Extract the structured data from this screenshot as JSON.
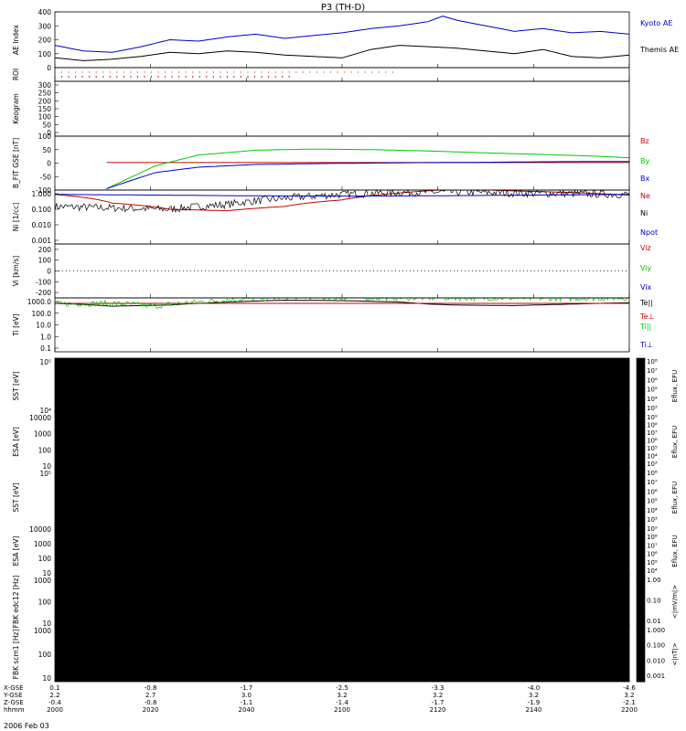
{
  "chart_data": {
    "type": "line",
    "title": "P3 (TH-D)",
    "date_label": "2006 Feb 03",
    "time_axis": {
      "ticks": [
        "2000",
        "2020",
        "2040",
        "2100",
        "2120",
        "2140",
        "2200"
      ],
      "rows": [
        {
          "label": "X-GSE",
          "values": [
            "0.1",
            "-0.8",
            "-1.7",
            "-2.5",
            "-3.3",
            "-4.0",
            "-4.6"
          ]
        },
        {
          "label": "Y-GSE",
          "values": [
            "2.2",
            "2.7",
            "3.0",
            "3.2",
            "3.2",
            "3.2",
            "3.2"
          ]
        },
        {
          "label": "Z-GSE",
          "values": [
            "-0.4",
            "-0.8",
            "-1.1",
            "-1.4",
            "-1.7",
            "-1.9",
            "-2.1"
          ]
        },
        {
          "label": "hhmm",
          "values": [
            "2000",
            "2020",
            "2040",
            "2100",
            "2120",
            "2140",
            "2200"
          ]
        }
      ]
    },
    "panels": [
      {
        "id": "ae",
        "type": "line",
        "ylabel": "AE Index",
        "yticks": [
          "400",
          "300",
          "200",
          "100",
          "0"
        ],
        "ylim": [
          0,
          400
        ],
        "series": [
          {
            "name": "Kyoto AE",
            "color": "#0000c8",
            "x": [
              0,
              10,
              20,
              30,
              40,
              50,
              60,
              70,
              80,
              90,
              100,
              110,
              120,
              130,
              135,
              140,
              150,
              160,
              170,
              180,
              190,
              200
            ],
            "y": [
              160,
              120,
              110,
              150,
              200,
              190,
              220,
              240,
              210,
              230,
              250,
              280,
              300,
              330,
              370,
              340,
              300,
              260,
              280,
              250,
              260,
              240
            ]
          },
          {
            "name": "Themis AE",
            "color": "#000000",
            "x": [
              0,
              10,
              20,
              30,
              40,
              50,
              60,
              70,
              80,
              90,
              100,
              110,
              120,
              130,
              140,
              150,
              160,
              170,
              180,
              190,
              200
            ],
            "y": [
              70,
              50,
              60,
              80,
              110,
              100,
              120,
              110,
              90,
              80,
              70,
              130,
              160,
              150,
              140,
              120,
              100,
              130,
              80,
              70,
              90
            ]
          }
        ]
      },
      {
        "id": "roi",
        "type": "events",
        "ylabel": "ROI",
        "yticks": [],
        "series": [
          {
            "color": "#d2691e",
            "row": 0,
            "x_start": 0,
            "x_end": 118
          },
          {
            "color": "#800000",
            "row": 1,
            "x_start": 0,
            "x_end": 82
          }
        ]
      },
      {
        "id": "keogram",
        "type": "blank",
        "ylabel": "Keogram",
        "yticks": [
          "300",
          "250",
          "200",
          "150",
          "100",
          "50",
          "0"
        ]
      },
      {
        "id": "b",
        "type": "line",
        "ylabel": "B_FIT GSE [nT]",
        "yticks": [
          "100",
          "50",
          "0",
          "-50",
          "-100"
        ],
        "ylim": [
          -100,
          100
        ],
        "series": [
          {
            "name": "Bz",
            "color": "#c80000",
            "x": [
              18,
              200
            ],
            "y": [
              2,
              2
            ]
          },
          {
            "name": "By",
            "color": "#00c800",
            "x": [
              18,
              25,
              35,
              50,
              70,
              90,
              110,
              130,
              150,
              170,
              190,
              200
            ],
            "y": [
              -95,
              -60,
              -10,
              30,
              48,
              52,
              50,
              45,
              38,
              32,
              25,
              20
            ]
          },
          {
            "name": "Bx",
            "color": "#0000c8",
            "x": [
              18,
              25,
              35,
              50,
              70,
              90,
              110,
              130,
              150,
              170,
              190,
              200
            ],
            "y": [
              -95,
              -70,
              -35,
              -15,
              -5,
              -2,
              0,
              2,
              3,
              5,
              6,
              6
            ]
          }
        ]
      },
      {
        "id": "n",
        "type": "line",
        "ylabel": "Ni [1/cc]",
        "scale": "log",
        "yticks": [
          "1.000",
          "0.100",
          "0.010",
          "0.001"
        ],
        "series": [
          {
            "name": "Ne",
            "color": "#c80000",
            "x": [
              0,
              20,
              40,
              60,
              80,
              100,
              120,
              140,
              160,
              180,
              200
            ],
            "y": [
              0.9,
              0.25,
              0.1,
              0.08,
              0.15,
              0.4,
              1.1,
              2.0,
              1.5,
              1.2,
              0.8
            ]
          },
          {
            "name": "Ni",
            "color": "#000000",
            "noisy": true,
            "x": [
              0,
              20,
              40,
              60,
              80,
              100,
              120,
              140,
              160,
              180,
              200
            ],
            "y": [
              0.15,
              0.12,
              0.1,
              0.2,
              0.5,
              0.9,
              1.2,
              1.3,
              1.1,
              1.0,
              0.9
            ]
          },
          {
            "name": "Npot",
            "color": "#0000c8",
            "x": [
              0,
              20,
              40,
              60,
              80,
              100,
              120,
              140,
              160,
              180,
              200
            ],
            "y": [
              0.9,
              0.85,
              0.8,
              0.75,
              0.72,
              0.7,
              0.72,
              0.75,
              0.8,
              0.85,
              0.9
            ]
          }
        ]
      },
      {
        "id": "v",
        "type": "line",
        "ylabel": "Vi [km/s]",
        "yticks": [
          "200",
          "100",
          "0",
          "-100",
          "-200"
        ],
        "ylim": [
          -250,
          250
        ],
        "series": [
          {
            "name": "Viz",
            "color": "#c80000"
          },
          {
            "name": "Viy",
            "color": "#00c800"
          },
          {
            "name": "Vix",
            "color": "#0000c8"
          }
        ]
      },
      {
        "id": "t",
        "type": "line",
        "ylabel": "Ti [eV]",
        "scale": "log",
        "yticks": [
          "1000.0",
          "100.0",
          "10.0",
          "1.0",
          "0.1"
        ],
        "series": [
          {
            "name": "Te||",
            "color": "#000000",
            "x": [
              0,
              20,
              40,
              60,
              80,
              100,
              120,
              130,
              140,
              160,
              180,
              200
            ],
            "y": [
              700,
              400,
              500,
              900,
              1300,
              1200,
              900,
              600,
              500,
              450,
              600,
              800
            ]
          },
          {
            "name": "Te⊥",
            "color": "#c80000",
            "x": [
              0,
              200
            ],
            "y": [
              700,
              700
            ]
          },
          {
            "name": "Ti||",
            "color": "#00c800",
            "noisy": true,
            "x": [
              0,
              20,
              35,
              50,
              70,
              85,
              100,
              120,
              140,
              160,
              180,
              200
            ],
            "y": [
              600,
              700,
              400,
              900,
              1800,
              2500,
              2000,
              2200,
              2100,
              2000,
              1900,
              2100
            ]
          },
          {
            "name": "Ti⊥",
            "color": "#0000c8"
          }
        ]
      },
      {
        "id": "sst_e",
        "type": "heatmap",
        "ylabel": "SST [eV]",
        "yticks": [
          "10⁵",
          "10⁴"
        ],
        "colorbar_label": "Eflux, EFU",
        "colorbar_ticks": [
          "10⁸",
          "10⁷",
          "10⁶",
          "10⁵",
          "10⁴",
          "10³"
        ]
      },
      {
        "id": "esa_e",
        "type": "heatmap",
        "ylabel": "ESA [eV]",
        "yticks": [
          "10000",
          "1000",
          "100",
          "10"
        ],
        "colorbar_label": "Eflux, EFU",
        "colorbar_ticks": [
          "10⁹",
          "10⁸",
          "10⁷",
          "10⁶",
          "10⁵",
          "10⁴",
          "10³"
        ]
      },
      {
        "id": "sst_i",
        "type": "heatmap",
        "ylabel": "SST [eV]",
        "yticks": [
          "10⁵"
        ],
        "colorbar_label": "Eflux, EFU",
        "colorbar_ticks": [
          "10⁸",
          "10⁷",
          "10⁶",
          "10⁵",
          "10⁴",
          "10³"
        ]
      },
      {
        "id": "esa_i",
        "type": "heatmap",
        "ylabel": "ESA [eV]",
        "yticks": [
          "10000",
          "1000",
          "100",
          "10"
        ],
        "colorbar_label": "Eflux, EFU",
        "colorbar_ticks": [
          "10⁹",
          "10⁸",
          "10⁷",
          "10⁶",
          "10⁵",
          "10⁴"
        ]
      },
      {
        "id": "fbk_e",
        "type": "heatmap",
        "ylabel": "FBK edc12 [Hz]",
        "yticks": [
          "1000",
          "100",
          "10"
        ],
        "colorbar_label": "<|mV/m|>",
        "colorbar_ticks": [
          "1.00",
          "0.10",
          "0.01"
        ]
      },
      {
        "id": "fbk_b",
        "type": "heatmap",
        "ylabel": "FBK scm1 [Hz]",
        "yticks": [
          "1000",
          "100",
          "10"
        ],
        "colorbar_label": "<|nT|>",
        "colorbar_ticks": [
          "1.000",
          "0.100",
          "0.010",
          "0.001"
        ]
      }
    ]
  }
}
